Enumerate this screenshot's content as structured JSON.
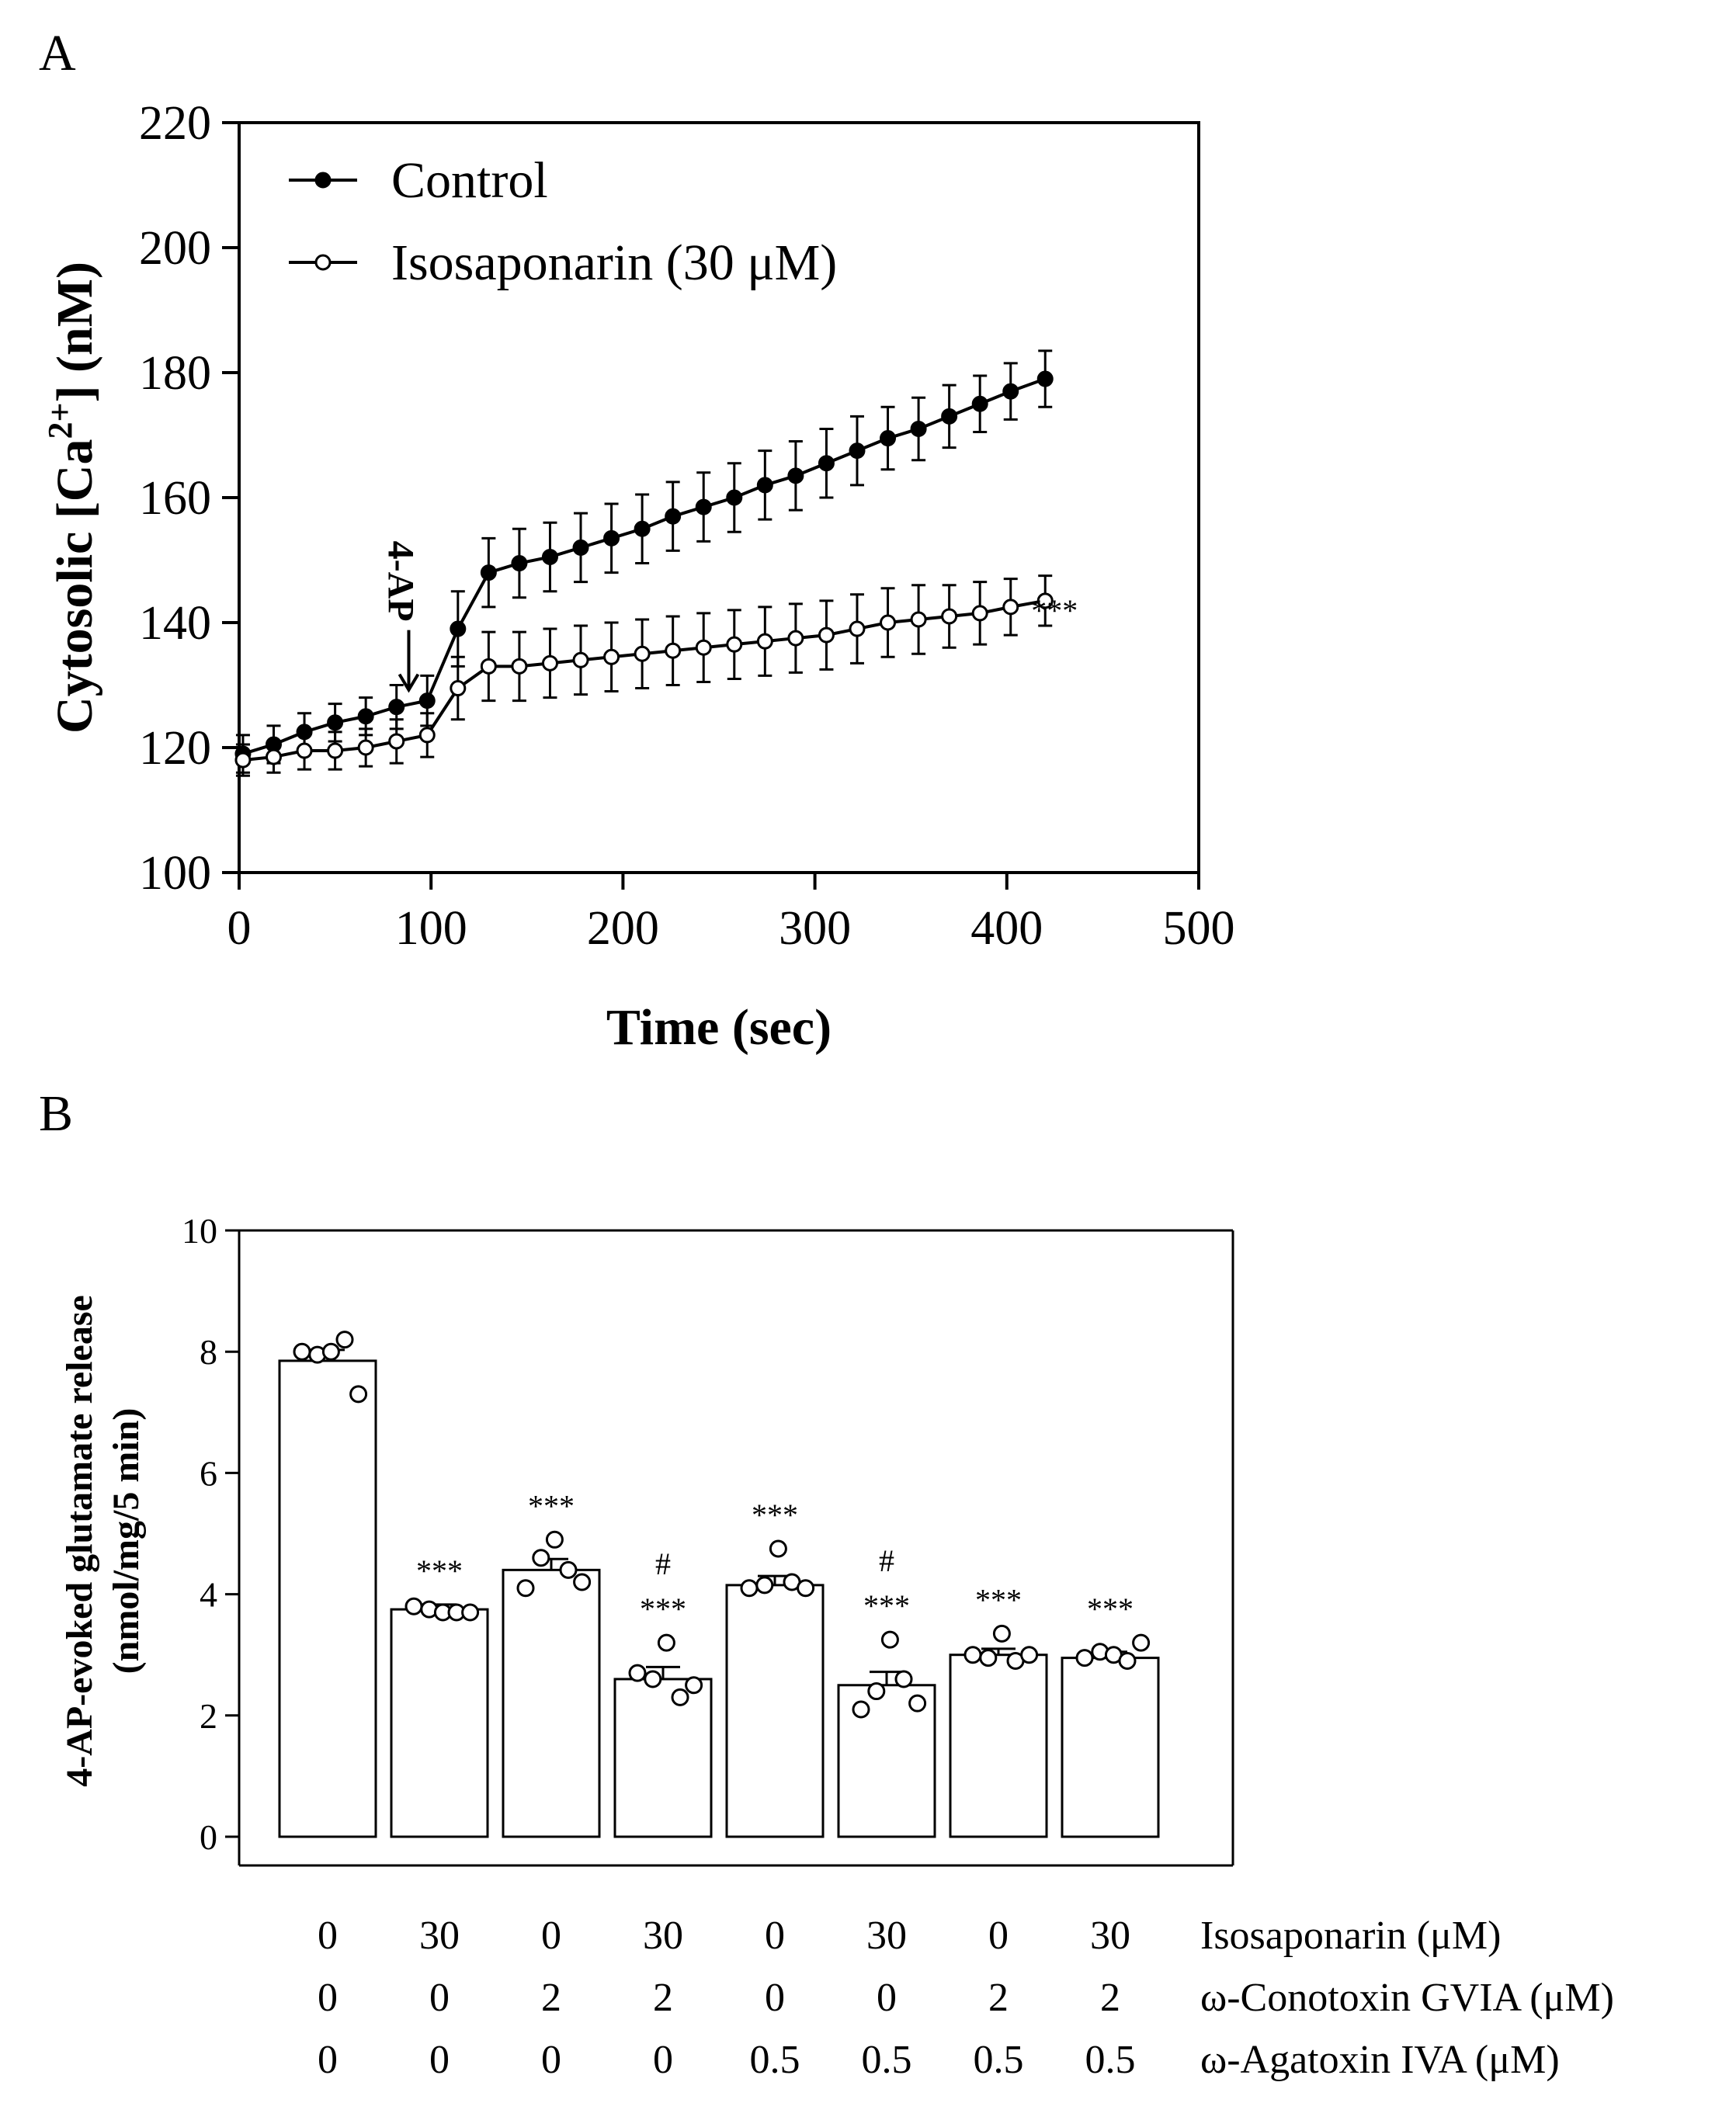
{
  "chart_data": [
    {
      "panel": "A",
      "type": "line",
      "xlabel": "Time (sec)",
      "ylabel_main": "Cytosolic [Ca",
      "ylabel_sup": "2+",
      "ylabel_end": "] (nM)",
      "xlim": [
        0,
        500
      ],
      "ylim": [
        100,
        220
      ],
      "xticks": [
        "0",
        "100",
        "200",
        "300",
        "400",
        "500"
      ],
      "yticks": [
        "100",
        "120",
        "140",
        "160",
        "180",
        "200",
        "220"
      ],
      "annotation_arrow": "4-AP",
      "annotation_arrow_at": [
        90,
        127
      ],
      "significance": "***",
      "series": [
        {
          "name": "Control",
          "marker": "filled",
          "x": [
            2,
            18,
            34,
            50,
            66,
            82,
            98,
            114,
            130,
            146,
            162,
            178,
            194,
            210,
            226,
            242,
            258,
            274,
            290,
            306,
            322,
            338,
            354,
            370,
            386,
            402,
            420
          ],
          "y": [
            119,
            120.5,
            122.5,
            124,
            125,
            126.5,
            127.5,
            139,
            148,
            149.5,
            150.5,
            152,
            153.5,
            155,
            157,
            158.5,
            160,
            162,
            163.5,
            165.5,
            167.5,
            169.5,
            171,
            173,
            175,
            177,
            179
          ],
          "err": [
            3,
            3,
            3,
            3,
            3,
            3.5,
            4,
            6,
            5.5,
            5.5,
            5.5,
            5.5,
            5.5,
            5.5,
            5.5,
            5.5,
            5.5,
            5.5,
            5.5,
            5.5,
            5.5,
            5,
            5,
            5,
            4.5,
            4.5,
            4.5
          ]
        },
        {
          "name": "Isosaponarin (30 μM)",
          "marker": "open",
          "x": [
            2,
            18,
            34,
            50,
            66,
            82,
            98,
            114,
            130,
            146,
            162,
            178,
            194,
            210,
            226,
            242,
            258,
            274,
            290,
            306,
            322,
            338,
            354,
            370,
            386,
            402,
            420
          ],
          "y": [
            118,
            118.5,
            119.5,
            119.5,
            120,
            121,
            122,
            129.5,
            133,
            133,
            133.5,
            134,
            134.5,
            135,
            135.5,
            136,
            136.5,
            137,
            137.5,
            138,
            139,
            140,
            140.5,
            141,
            141.5,
            142.5,
            143.5
          ],
          "err": [
            2.5,
            2.5,
            3,
            3,
            3,
            3.5,
            3.5,
            5,
            5.5,
            5.5,
            5.5,
            5.5,
            5.5,
            5.5,
            5.5,
            5.5,
            5.5,
            5.5,
            5.5,
            5.5,
            5.5,
            5.5,
            5.5,
            5,
            5,
            4.5,
            4
          ]
        }
      ]
    },
    {
      "panel": "B",
      "type": "bar",
      "ylabel_line1": "4-AP-evoked glutamate release",
      "ylabel_line2": "(nmol/mg/5 min)",
      "ylim": [
        0,
        10
      ],
      "yticks": [
        "0",
        "2",
        "4",
        "6",
        "8",
        "10"
      ],
      "values": [
        7.85,
        3.75,
        4.4,
        2.6,
        4.15,
        2.5,
        3.0,
        2.95
      ],
      "sem": [
        0.18,
        0.08,
        0.18,
        0.2,
        0.15,
        0.22,
        0.1,
        0.1
      ],
      "points": [
        [
          8.0,
          7.95,
          8.0,
          8.2,
          7.3
        ],
        [
          3.8,
          3.75,
          3.7,
          3.7,
          3.7
        ],
        [
          4.1,
          4.6,
          4.9,
          4.4,
          4.2
        ],
        [
          2.7,
          2.6,
          3.2,
          2.3,
          2.5
        ],
        [
          4.1,
          4.15,
          4.75,
          4.2,
          4.1
        ],
        [
          2.1,
          2.4,
          3.25,
          2.6,
          2.2
        ],
        [
          3.0,
          2.95,
          3.35,
          2.9,
          3.0
        ],
        [
          2.95,
          3.05,
          3.0,
          2.9,
          3.2
        ]
      ],
      "significance": [
        "",
        "***",
        "***",
        "***",
        "***",
        "***",
        "***",
        "***"
      ],
      "hash": [
        "",
        "",
        "",
        "#",
        "",
        "#",
        "",
        ""
      ],
      "treatments": [
        {
          "label": "Isosaponarin (μM)",
          "values": [
            "0",
            "30",
            "0",
            "30",
            "0",
            "30",
            "0",
            "30"
          ]
        },
        {
          "label": "ω-Conotoxin GVIA (μM)",
          "values": [
            "0",
            "0",
            "2",
            "2",
            "0",
            "0",
            "2",
            "2"
          ]
        },
        {
          "label": "ω-Agatoxin IVA (μM)",
          "values": [
            "0",
            "0",
            "0",
            "0",
            "0.5",
            "0.5",
            "0.5",
            "0.5"
          ]
        }
      ]
    }
  ]
}
